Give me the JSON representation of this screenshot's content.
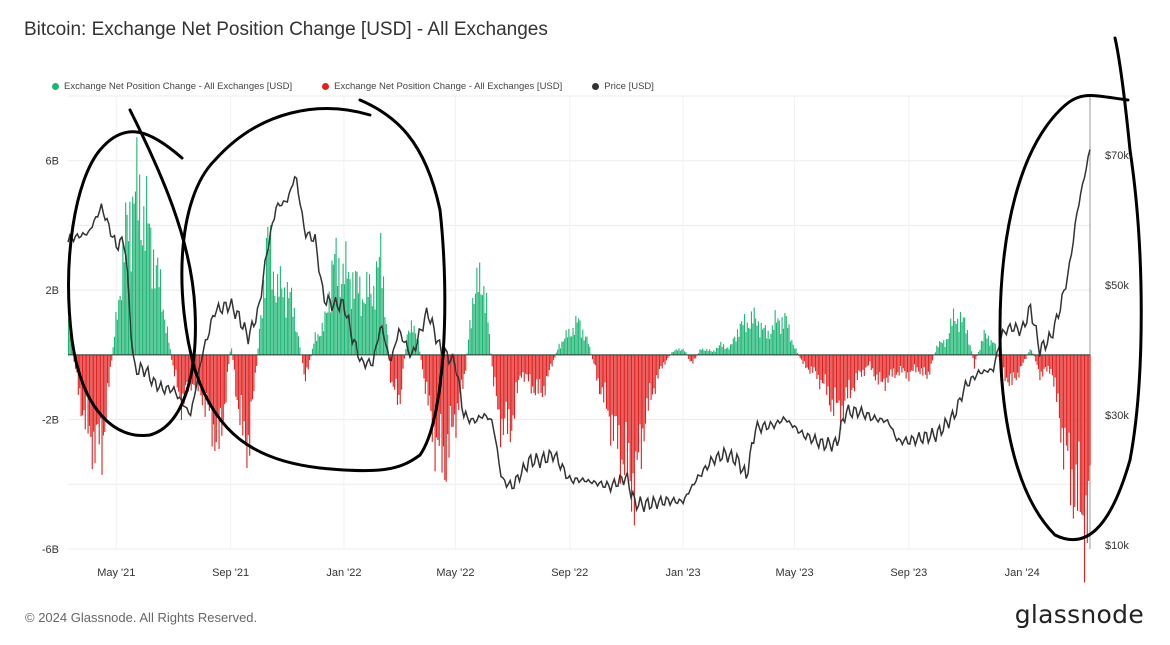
{
  "title": "Bitcoin: Exchange Net Position Change [USD] - All Exchanges",
  "footer": "© 2024 Glassnode. All Rights Reserved.",
  "brand": "glassnode",
  "legend": [
    {
      "label": "Exchange Net Position Change - All Exchanges [USD]",
      "color": "#1db574"
    },
    {
      "label": "Exchange Net Position Change - All Exchanges [USD]",
      "color": "#e0201f"
    },
    {
      "label": "Price [USD]",
      "color": "#333333"
    }
  ],
  "chart_data": {
    "type": "bar",
    "title": "Bitcoin: Exchange Net Position Change [USD] - All Exchanges",
    "x_range": [
      "2021-03-10",
      "2024-03-14"
    ],
    "x_ticks": [
      "May '21",
      "Sep '21",
      "Jan '22",
      "May '22",
      "Sep '22",
      "Jan '23",
      "May '23",
      "Sep '23",
      "Jan '24"
    ],
    "y_left_ticks": [
      "6B",
      "2B",
      "-2B",
      "-6B"
    ],
    "y_left_range": [
      -6,
      8
    ],
    "y_left_unit": "billion USD",
    "y_right_ticks": [
      "$70k",
      "$50k",
      "$30k",
      "$10k"
    ],
    "y_right_range": [
      10000,
      70000
    ],
    "grid": true,
    "legend_position": "top-left",
    "colors": {
      "positive": "#1db574",
      "negative": "#e0201f",
      "price": "#333333",
      "annotation": "#000000"
    },
    "series": [
      {
        "name": "Exchange Net Position Change - All Exchanges [USD]",
        "kind": "bars",
        "unit": "billion USD",
        "dates": [
          "2021-03-10",
          "2021-03-20",
          "2021-04-01",
          "2021-04-15",
          "2021-05-01",
          "2021-05-10",
          "2021-05-20",
          "2021-06-01",
          "2021-06-10",
          "2021-06-20",
          "2021-07-01",
          "2021-07-10",
          "2021-07-20",
          "2021-08-01",
          "2021-08-10",
          "2021-08-20",
          "2021-09-01",
          "2021-09-10",
          "2021-09-20",
          "2021-10-01",
          "2021-10-10",
          "2021-10-20",
          "2021-11-01",
          "2021-11-10",
          "2021-11-20",
          "2021-12-01",
          "2021-12-10",
          "2021-12-20",
          "2022-01-01",
          "2022-01-10",
          "2022-01-20",
          "2022-02-01",
          "2022-02-10",
          "2022-02-20",
          "2022-03-01",
          "2022-03-10",
          "2022-03-20",
          "2022-04-01",
          "2022-04-10",
          "2022-04-20",
          "2022-05-01",
          "2022-05-10",
          "2022-05-20",
          "2022-06-01",
          "2022-06-10",
          "2022-06-20",
          "2022-07-01",
          "2022-07-10",
          "2022-07-20",
          "2022-08-01",
          "2022-08-10",
          "2022-08-20",
          "2022-09-01",
          "2022-09-10",
          "2022-09-20",
          "2022-10-01",
          "2022-10-10",
          "2022-10-20",
          "2022-11-01",
          "2022-11-10",
          "2022-11-20",
          "2022-12-01",
          "2022-12-10",
          "2022-12-20",
          "2023-01-01",
          "2023-01-10",
          "2023-01-20",
          "2023-02-01",
          "2023-02-10",
          "2023-02-20",
          "2023-03-01",
          "2023-03-10",
          "2023-03-20",
          "2023-04-01",
          "2023-04-10",
          "2023-04-20",
          "2023-05-01",
          "2023-05-10",
          "2023-05-20",
          "2023-06-01",
          "2023-06-10",
          "2023-06-20",
          "2023-07-01",
          "2023-07-10",
          "2023-07-20",
          "2023-08-01",
          "2023-08-10",
          "2023-08-20",
          "2023-09-01",
          "2023-09-10",
          "2023-09-20",
          "2023-10-01",
          "2023-10-10",
          "2023-10-20",
          "2023-11-01",
          "2023-11-10",
          "2023-11-20",
          "2023-12-01",
          "2023-12-10",
          "2023-12-20",
          "2024-01-01",
          "2024-01-10",
          "2024-01-20",
          "2024-02-01",
          "2024-02-10",
          "2024-02-20",
          "2024-03-01",
          "2024-03-10",
          "2024-03-14"
        ],
        "values": [
          1.0,
          -1.0,
          -2.5,
          -2.8,
          1.2,
          3.5,
          5.0,
          4.2,
          3.0,
          1.5,
          -0.5,
          -1.5,
          -0.8,
          -1.2,
          -2.0,
          -2.8,
          0.4,
          -2.0,
          -2.8,
          0.5,
          3.5,
          2.0,
          2.0,
          1.0,
          -0.8,
          0.6,
          0.8,
          2.8,
          2.5,
          2.3,
          1.8,
          2.0,
          3.0,
          -0.8,
          -1.5,
          0.8,
          0.7,
          -1.5,
          -2.8,
          -3.2,
          -1.8,
          -0.8,
          2.0,
          2.2,
          -0.8,
          -2.3,
          -2.0,
          -0.5,
          -0.9,
          -1.2,
          -0.5,
          0.3,
          0.7,
          1.0,
          0.4,
          -0.8,
          -1.6,
          -2.5,
          -3.5,
          -4.0,
          -2.0,
          -0.9,
          -0.3,
          0.1,
          0.2,
          -0.3,
          0.2,
          0.1,
          0.3,
          0.2,
          0.8,
          1.0,
          1.1,
          0.6,
          1.0,
          1.1,
          0.2,
          -0.3,
          -0.5,
          -0.9,
          -1.5,
          -1.7,
          -1.0,
          -0.6,
          -0.3,
          -0.9,
          -0.7,
          -0.5,
          -0.6,
          -0.4,
          -0.7,
          0.3,
          0.4,
          1.2,
          0.9,
          -0.3,
          0.6,
          0.4,
          -0.5,
          -0.9,
          -0.3,
          0.2,
          -0.6,
          -0.4,
          -2.0,
          -3.5,
          -4.5,
          -5.2,
          -4.6
        ]
      },
      {
        "name": "Price [USD]",
        "kind": "line",
        "unit": "USD",
        "dates": [
          "2021-03-10",
          "2021-04-01",
          "2021-04-15",
          "2021-05-01",
          "2021-05-10",
          "2021-05-20",
          "2021-06-01",
          "2021-06-10",
          "2021-06-20",
          "2021-07-01",
          "2021-07-20",
          "2021-08-01",
          "2021-08-15",
          "2021-09-01",
          "2021-09-10",
          "2021-09-20",
          "2021-10-01",
          "2021-10-10",
          "2021-10-20",
          "2021-11-01",
          "2021-11-10",
          "2021-11-20",
          "2021-12-01",
          "2021-12-10",
          "2021-12-20",
          "2022-01-01",
          "2022-01-10",
          "2022-01-20",
          "2022-02-01",
          "2022-02-10",
          "2022-02-20",
          "2022-03-01",
          "2022-03-15",
          "2022-04-01",
          "2022-04-15",
          "2022-05-01",
          "2022-05-10",
          "2022-05-20",
          "2022-06-01",
          "2022-06-10",
          "2022-06-20",
          "2022-07-01",
          "2022-07-20",
          "2022-08-01",
          "2022-08-15",
          "2022-09-01",
          "2022-09-15",
          "2022-10-01",
          "2022-10-15",
          "2022-11-01",
          "2022-11-10",
          "2022-11-20",
          "2022-12-15",
          "2023-01-01",
          "2023-01-15",
          "2023-02-01",
          "2023-02-15",
          "2023-03-01",
          "2023-03-10",
          "2023-03-20",
          "2023-04-10",
          "2023-04-20",
          "2023-05-10",
          "2023-06-01",
          "2023-06-15",
          "2023-06-25",
          "2023-07-10",
          "2023-07-25",
          "2023-08-10",
          "2023-08-20",
          "2023-09-01",
          "2023-09-15",
          "2023-10-01",
          "2023-10-20",
          "2023-11-01",
          "2023-11-15",
          "2023-12-01",
          "2023-12-10",
          "2023-12-20",
          "2024-01-01",
          "2024-01-10",
          "2024-01-20",
          "2024-02-01",
          "2024-02-10",
          "2024-02-20",
          "2024-03-01",
          "2024-03-10",
          "2024-03-14"
        ],
        "values": [
          57000,
          58000,
          62000,
          56000,
          57000,
          37000,
          37000,
          35000,
          34000,
          34000,
          30000,
          39000,
          46000,
          47000,
          45000,
          42000,
          46000,
          55000,
          62000,
          63000,
          67000,
          58000,
          57000,
          48000,
          47000,
          47000,
          42000,
          38000,
          38000,
          44000,
          38000,
          43000,
          39000,
          46000,
          40000,
          38000,
          30000,
          29000,
          30000,
          29000,
          20000,
          19000,
          23000,
          23000,
          24000,
          20000,
          20000,
          19500,
          19000,
          20500,
          16500,
          16200,
          16800,
          16700,
          20000,
          23000,
          24000,
          23000,
          20500,
          28000,
          28500,
          29500,
          27000,
          25500,
          25500,
          30500,
          30500,
          29500,
          29000,
          26000,
          26000,
          26500,
          27000,
          30000,
          34500,
          36500,
          37000,
          42500,
          43500,
          43000,
          46500,
          40000,
          42000,
          46000,
          52000,
          62000,
          68000,
          71000
        ]
      }
    ],
    "annotations": "hand-drawn black circles around four regions"
  }
}
